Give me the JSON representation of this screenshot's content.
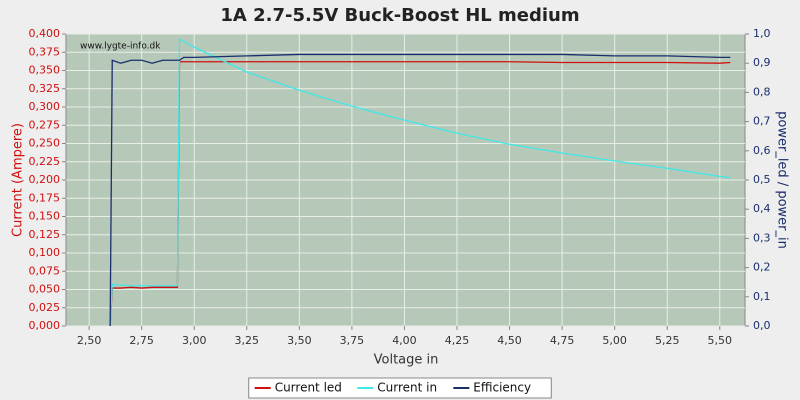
{
  "chart_data": {
    "type": "line",
    "title": "1A 2.7-5.5V Buck-Boost HL medium",
    "x_label": "Voltage in",
    "y_label": "Current (Ampere)",
    "y2_label": "power_led / power_in",
    "annotation": "www.lygte-info.dk",
    "grid": true,
    "legend": "bottom",
    "background": "#b6c8b8",
    "x": [
      2.6,
      2.61,
      2.65,
      2.7,
      2.75,
      2.8,
      2.85,
      2.92,
      2.93,
      2.95,
      3.0,
      3.25,
      3.5,
      3.75,
      4.0,
      4.25,
      4.5,
      4.75,
      5.0,
      5.25,
      5.5,
      5.55
    ],
    "series": [
      {
        "name": "Current led",
        "color": "#d01010",
        "values": [
          0.0,
          0.052,
          0.052,
          0.053,
          0.052,
          0.053,
          0.053,
          0.053,
          0.362,
          0.362,
          0.362,
          0.362,
          0.362,
          0.362,
          0.362,
          0.362,
          0.362,
          0.361,
          0.361,
          0.361,
          0.36,
          0.361
        ]
      },
      {
        "name": "Current in",
        "color": "#40e8e8",
        "values": [
          0.0,
          0.057,
          0.056,
          0.055,
          0.055,
          0.055,
          0.055,
          0.055,
          0.393,
          0.39,
          0.382,
          0.348,
          0.323,
          0.301,
          0.282,
          0.264,
          0.249,
          0.237,
          0.226,
          0.216,
          0.205,
          0.203
        ]
      },
      {
        "name": "Efficiency",
        "color": "#1a2e6e",
        "axis": "y2",
        "values": [
          0.0,
          0.91,
          0.9,
          0.91,
          0.91,
          0.9,
          0.91,
          0.91,
          0.91,
          0.92,
          0.92,
          0.925,
          0.93,
          0.93,
          0.93,
          0.93,
          0.93,
          0.93,
          0.925,
          0.925,
          0.92,
          0.92
        ]
      }
    ],
    "xlim": [
      2.39,
      5.62
    ],
    "xticks": [
      {
        "value": 2.5,
        "label": "2,50"
      },
      {
        "value": 2.75,
        "label": "2,75"
      },
      {
        "value": 3.0,
        "label": "3,00"
      },
      {
        "value": 3.25,
        "label": "3,25"
      },
      {
        "value": 3.5,
        "label": "3,50"
      },
      {
        "value": 3.75,
        "label": "3,75"
      },
      {
        "value": 4.0,
        "label": "4,00"
      },
      {
        "value": 4.25,
        "label": "4,25"
      },
      {
        "value": 4.5,
        "label": "4,50"
      },
      {
        "value": 4.75,
        "label": "4,75"
      },
      {
        "value": 5.0,
        "label": "5,00"
      },
      {
        "value": 5.25,
        "label": "5,25"
      },
      {
        "value": 5.5,
        "label": "5,50"
      }
    ],
    "ylim": [
      0,
      0.4
    ],
    "yticks": [
      {
        "value": 0,
        "label": "0,000"
      },
      {
        "value": 0.025,
        "label": "0,025"
      },
      {
        "value": 0.05,
        "label": "0,050"
      },
      {
        "value": 0.075,
        "label": "0,075"
      },
      {
        "value": 0.1,
        "label": "0,100"
      },
      {
        "value": 0.125,
        "label": "0,125"
      },
      {
        "value": 0.15,
        "label": "0,150"
      },
      {
        "value": 0.175,
        "label": "0,175"
      },
      {
        "value": 0.2,
        "label": "0,200"
      },
      {
        "value": 0.225,
        "label": "0,225"
      },
      {
        "value": 0.25,
        "label": "0,250"
      },
      {
        "value": 0.275,
        "label": "0,275"
      },
      {
        "value": 0.3,
        "label": "0,300"
      },
      {
        "value": 0.325,
        "label": "0,325"
      },
      {
        "value": 0.35,
        "label": "0,350"
      },
      {
        "value": 0.375,
        "label": "0,375"
      },
      {
        "value": 0.4,
        "label": "0,400"
      }
    ],
    "y2lim": [
      0,
      1
    ],
    "y2ticks": [
      {
        "value": 0,
        "label": "0,0"
      },
      {
        "value": 0.1,
        "label": "0,1"
      },
      {
        "value": 0.2,
        "label": "0,2"
      },
      {
        "value": 0.3,
        "label": "0,3"
      },
      {
        "value": 0.4,
        "label": "0,4"
      },
      {
        "value": 0.5,
        "label": "0,5"
      },
      {
        "value": 0.6,
        "label": "0,6"
      },
      {
        "value": 0.7,
        "label": "0,7"
      },
      {
        "value": 0.8,
        "label": "0,8"
      },
      {
        "value": 0.9,
        "label": "0,9"
      },
      {
        "value": 1,
        "label": "1,0"
      }
    ]
  }
}
